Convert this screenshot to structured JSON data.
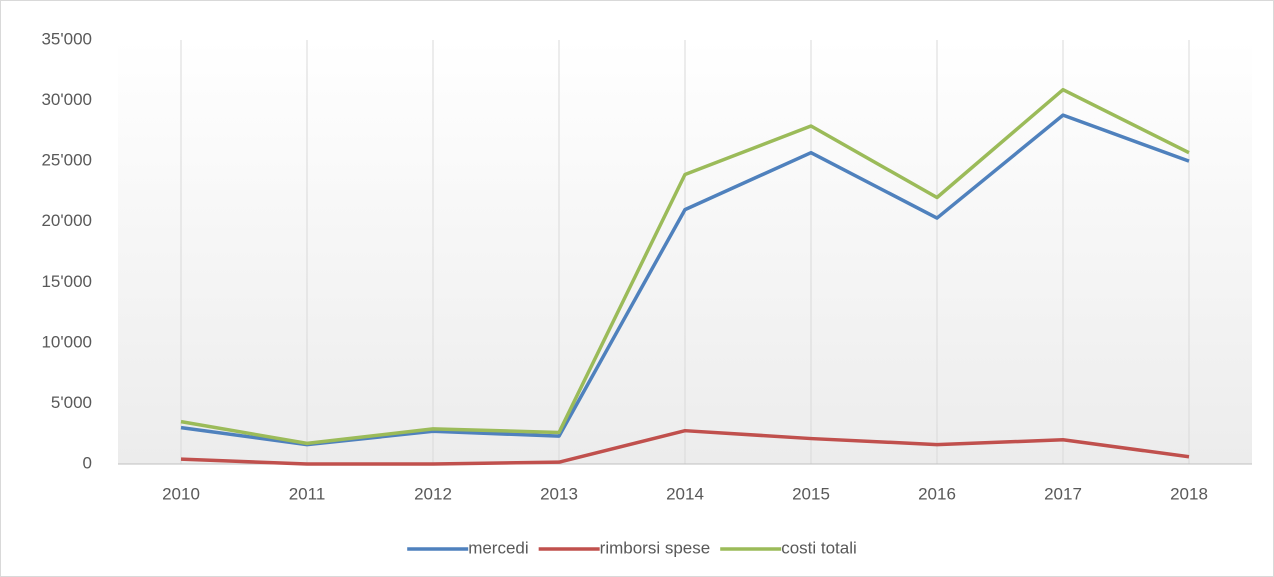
{
  "chart_data": {
    "type": "line",
    "categories": [
      "2010",
      "2011",
      "2012",
      "2013",
      "2014",
      "2015",
      "2016",
      "2017",
      "2018"
    ],
    "series": [
      {
        "name": "mercedi",
        "color": "#4f81bd",
        "values": [
          3000,
          1600,
          2700,
          2300,
          21000,
          25700,
          20300,
          28800,
          25000
        ]
      },
      {
        "name": "rimborsi spese",
        "color": "#c0504d",
        "values": [
          400,
          0,
          0,
          150,
          2750,
          2100,
          1600,
          2000,
          600
        ]
      },
      {
        "name": "costi totali",
        "color": "#9bbb59",
        "values": [
          3500,
          1700,
          2900,
          2600,
          23900,
          27900,
          22000,
          30900,
          25700
        ]
      }
    ],
    "ylim": [
      0,
      35000
    ],
    "yticks": [
      0,
      {
        "value": 5000,
        "label": "5'000"
      },
      {
        "value": 10000,
        "label": "10'000"
      },
      {
        "value": 15000,
        "label": "15'000"
      },
      {
        "value": 20000,
        "label": "20'000"
      },
      {
        "value": 25000,
        "label": "25'000"
      },
      {
        "value": 30000,
        "label": "30'000"
      },
      {
        "value": 35000,
        "label": "35'000"
      }
    ],
    "legend": "bottom"
  }
}
